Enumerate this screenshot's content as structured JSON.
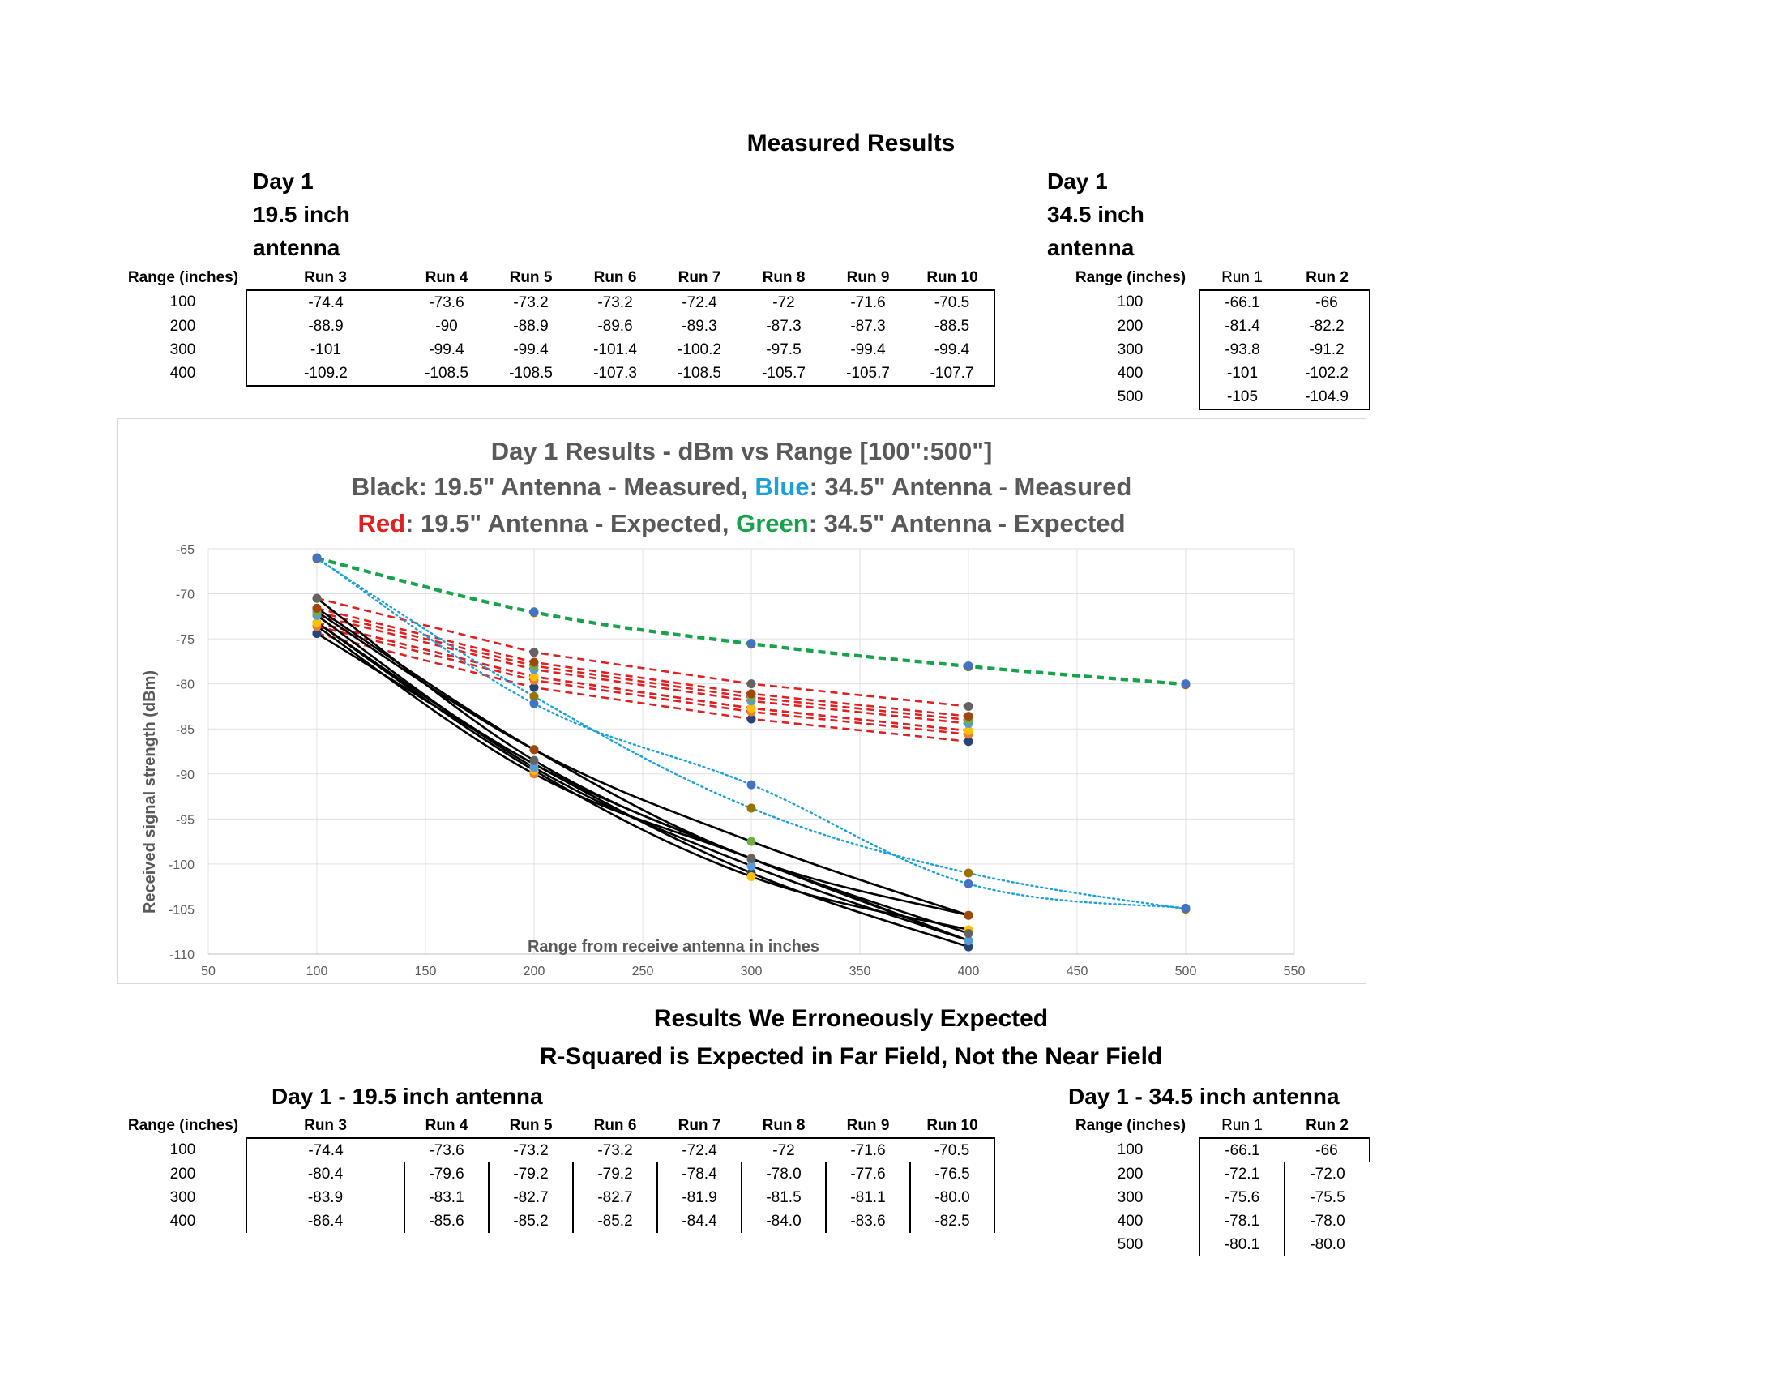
{
  "measured": {
    "title": "Measured Results",
    "left_header": [
      "Day 1",
      "19.5 inch",
      "antenna"
    ],
    "right_header": [
      "Day 1",
      "34.5 inch",
      "antenna"
    ],
    "left_table": {
      "columns": [
        "Range (inches)",
        "Run 3",
        "Run 4",
        "Run 5",
        "Run 6",
        "Run 7",
        "Run 8",
        "Run 9",
        "Run 10"
      ],
      "rows": [
        [
          "100",
          "-74.4",
          "-73.6",
          "-73.2",
          "-73.2",
          "-72.4",
          "-72",
          "-71.6",
          "-70.5"
        ],
        [
          "200",
          "-88.9",
          "-90",
          "-88.9",
          "-89.6",
          "-89.3",
          "-87.3",
          "-87.3",
          "-88.5"
        ],
        [
          "300",
          "-101",
          "-99.4",
          "-99.4",
          "-101.4",
          "-100.2",
          "-97.5",
          "-99.4",
          "-99.4"
        ],
        [
          "400",
          "-109.2",
          "-108.5",
          "-108.5",
          "-107.3",
          "-108.5",
          "-105.7",
          "-105.7",
          "-107.7"
        ]
      ]
    },
    "right_table": {
      "columns": [
        "Range (inches)",
        "Run 1",
        "Run 2"
      ],
      "rows": [
        [
          "100",
          "-66.1",
          "-66"
        ],
        [
          "200",
          "-81.4",
          "-82.2"
        ],
        [
          "300",
          "-93.8",
          "-91.2"
        ],
        [
          "400",
          "-101",
          "-102.2"
        ],
        [
          "500",
          "-105",
          "-104.9"
        ]
      ]
    }
  },
  "expected": {
    "title1": "Results We Erroneously Expected",
    "title2": "R-Squared is Expected in Far Field, Not the Near Field",
    "left_header": "Day 1 - 19.5 inch antenna",
    "right_header": "Day 1 - 34.5 inch antenna",
    "left_table": {
      "columns": [
        "Range (inches)",
        "Run 3",
        "Run 4",
        "Run 5",
        "Run 6",
        "Run 7",
        "Run 8",
        "Run 9",
        "Run 10"
      ],
      "rows": [
        [
          "100",
          "-74.4",
          "-73.6",
          "-73.2",
          "-73.2",
          "-72.4",
          "-72",
          "-71.6",
          "-70.5"
        ],
        [
          "200",
          "-80.4",
          "-79.6",
          "-79.2",
          "-79.2",
          "-78.4",
          "-78.0",
          "-77.6",
          "-76.5"
        ],
        [
          "300",
          "-83.9",
          "-83.1",
          "-82.7",
          "-82.7",
          "-81.9",
          "-81.5",
          "-81.1",
          "-80.0"
        ],
        [
          "400",
          "-86.4",
          "-85.6",
          "-85.2",
          "-85.2",
          "-84.4",
          "-84.0",
          "-83.6",
          "-82.5"
        ]
      ]
    },
    "right_table": {
      "columns": [
        "Range (inches)",
        "Run 1",
        "Run 2"
      ],
      "rows": [
        [
          "100",
          "-66.1",
          "-66"
        ],
        [
          "200",
          "-72.1",
          "-72.0"
        ],
        [
          "300",
          "-75.6",
          "-75.5"
        ],
        [
          "400",
          "-78.1",
          "-78.0"
        ],
        [
          "500",
          "-80.1",
          "-80.0"
        ]
      ]
    }
  },
  "chart_data": {
    "type": "line",
    "title_lines": [
      [
        {
          "text": "Day 1 Results - dBm vs Range [100\":500\"]",
          "color": "#595959"
        }
      ],
      [
        {
          "text": "Black: 19.5\" Antenna - Measured, ",
          "color": "#595959"
        },
        {
          "text": "Blue",
          "color": "#1ba1d8"
        },
        {
          "text": ": 34.5\" Antenna - Measured",
          "color": "#595959"
        }
      ],
      [
        {
          "text": "Red",
          "color": "#e02020"
        },
        {
          "text": ": 19.5\" Antenna - Expected,     ",
          "color": "#595959"
        },
        {
          "text": "Green",
          "color": "#16a34a"
        },
        {
          "text": ": 34.5\" Antenna - Expected",
          "color": "#595959"
        }
      ]
    ],
    "xlabel": "Range from receive antenna in inches",
    "ylabel": "Received signal strength (dBm)",
    "xlim": [
      50,
      550
    ],
    "ylim": [
      -110,
      -65
    ],
    "xticks": [
      50,
      100,
      150,
      200,
      250,
      300,
      350,
      400,
      450,
      500,
      550
    ],
    "yticks": [
      -65,
      -70,
      -75,
      -80,
      -85,
      -90,
      -95,
      -100,
      -105,
      -110
    ],
    "grid": true,
    "colors": {
      "measured_19_5": "#000000",
      "measured_34_5": "#1ba1d8",
      "expected_19_5": "#e02020",
      "expected_34_5": "#16a34a"
    },
    "marker_colors": [
      "#264478",
      "#ed7d31",
      "#a5a5a5",
      "#ffc000",
      "#5b9bd5",
      "#70ad47",
      "#9e480e",
      "#636363",
      "#997300",
      "#4472c4"
    ],
    "series": [
      {
        "group": "measured_19_5",
        "x": [
          100,
          200,
          300,
          400
        ],
        "y": [
          -74.4,
          -88.9,
          -101,
          -109.2
        ]
      },
      {
        "group": "measured_19_5",
        "x": [
          100,
          200,
          300,
          400
        ],
        "y": [
          -73.6,
          -90,
          -99.4,
          -108.5
        ]
      },
      {
        "group": "measured_19_5",
        "x": [
          100,
          200,
          300,
          400
        ],
        "y": [
          -73.2,
          -88.9,
          -99.4,
          -108.5
        ]
      },
      {
        "group": "measured_19_5",
        "x": [
          100,
          200,
          300,
          400
        ],
        "y": [
          -73.2,
          -89.6,
          -101.4,
          -107.3
        ]
      },
      {
        "group": "measured_19_5",
        "x": [
          100,
          200,
          300,
          400
        ],
        "y": [
          -72.4,
          -89.3,
          -100.2,
          -108.5
        ]
      },
      {
        "group": "measured_19_5",
        "x": [
          100,
          200,
          300,
          400
        ],
        "y": [
          -72,
          -87.3,
          -97.5,
          -105.7
        ]
      },
      {
        "group": "measured_19_5",
        "x": [
          100,
          200,
          300,
          400
        ],
        "y": [
          -71.6,
          -87.3,
          -99.4,
          -105.7
        ]
      },
      {
        "group": "measured_19_5",
        "x": [
          100,
          200,
          300,
          400
        ],
        "y": [
          -70.5,
          -88.5,
          -99.4,
          -107.7
        ]
      },
      {
        "group": "measured_34_5",
        "x": [
          100,
          200,
          300,
          400,
          500
        ],
        "y": [
          -66.1,
          -81.4,
          -93.8,
          -101,
          -105
        ]
      },
      {
        "group": "measured_34_5",
        "x": [
          100,
          200,
          300,
          400,
          500
        ],
        "y": [
          -66,
          -82.2,
          -91.2,
          -102.2,
          -104.9
        ]
      },
      {
        "group": "expected_19_5",
        "x": [
          100,
          200,
          300,
          400
        ],
        "y": [
          -74.4,
          -80.4,
          -83.9,
          -86.4
        ]
      },
      {
        "group": "expected_19_5",
        "x": [
          100,
          200,
          300,
          400
        ],
        "y": [
          -73.6,
          -79.6,
          -83.1,
          -85.6
        ]
      },
      {
        "group": "expected_19_5",
        "x": [
          100,
          200,
          300,
          400
        ],
        "y": [
          -73.2,
          -79.2,
          -82.7,
          -85.2
        ]
      },
      {
        "group": "expected_19_5",
        "x": [
          100,
          200,
          300,
          400
        ],
        "y": [
          -73.2,
          -79.2,
          -82.7,
          -85.2
        ]
      },
      {
        "group": "expected_19_5",
        "x": [
          100,
          200,
          300,
          400
        ],
        "y": [
          -72.4,
          -78.4,
          -81.9,
          -84.4
        ]
      },
      {
        "group": "expected_19_5",
        "x": [
          100,
          200,
          300,
          400
        ],
        "y": [
          -72,
          -78.0,
          -81.5,
          -84.0
        ]
      },
      {
        "group": "expected_19_5",
        "x": [
          100,
          200,
          300,
          400
        ],
        "y": [
          -71.6,
          -77.6,
          -81.1,
          -83.6
        ]
      },
      {
        "group": "expected_19_5",
        "x": [
          100,
          200,
          300,
          400
        ],
        "y": [
          -70.5,
          -76.5,
          -80.0,
          -82.5
        ]
      },
      {
        "group": "expected_34_5",
        "x": [
          100,
          200,
          300,
          400,
          500
        ],
        "y": [
          -66.1,
          -72.1,
          -75.6,
          -78.1,
          -80.1
        ]
      },
      {
        "group": "expected_34_5",
        "x": [
          100,
          200,
          300,
          400,
          500
        ],
        "y": [
          -66,
          -72.0,
          -75.5,
          -78.0,
          -80.0
        ]
      }
    ]
  }
}
